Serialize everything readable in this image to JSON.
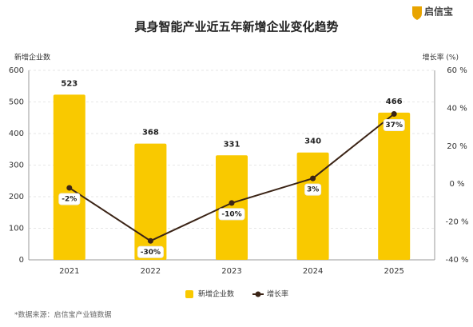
{
  "logo": "启信宝",
  "chart_data": {
    "type": "bar-line",
    "title": "具身智能产业近五年新增企业变化趋势",
    "y_label": "新增企业数",
    "y2_label": "增长率 (%)",
    "categories": [
      "2021",
      "2022",
      "2023",
      "2024",
      "2025"
    ],
    "series": [
      {
        "name": "新增企业数",
        "type": "bar",
        "color": "#f9c900",
        "values": [
          523,
          368,
          331,
          340,
          466
        ]
      },
      {
        "name": "增长率",
        "type": "line",
        "axis": "y2",
        "color": "#3b2416",
        "values": [
          -2,
          -30,
          -10,
          3,
          37
        ],
        "value_labels": [
          "-2%",
          "-30%",
          "-10%",
          "3%",
          "37%"
        ]
      }
    ],
    "ylim": [
      0,
      600
    ],
    "yticks": [
      0,
      100,
      200,
      300,
      400,
      500,
      600
    ],
    "y2lim": [
      -40,
      60
    ],
    "y2ticks": [
      {
        "value": -40,
        "label": "-40 %"
      },
      {
        "value": -20,
        "label": "-20 %"
      },
      {
        "value": 0,
        "label": "0 %"
      },
      {
        "value": 20,
        "label": "20 %"
      },
      {
        "value": 40,
        "label": "40 %"
      },
      {
        "value": 60,
        "label": "60 %"
      }
    ],
    "grid": true,
    "source": "*数据来源：启信宝产业链数据"
  }
}
